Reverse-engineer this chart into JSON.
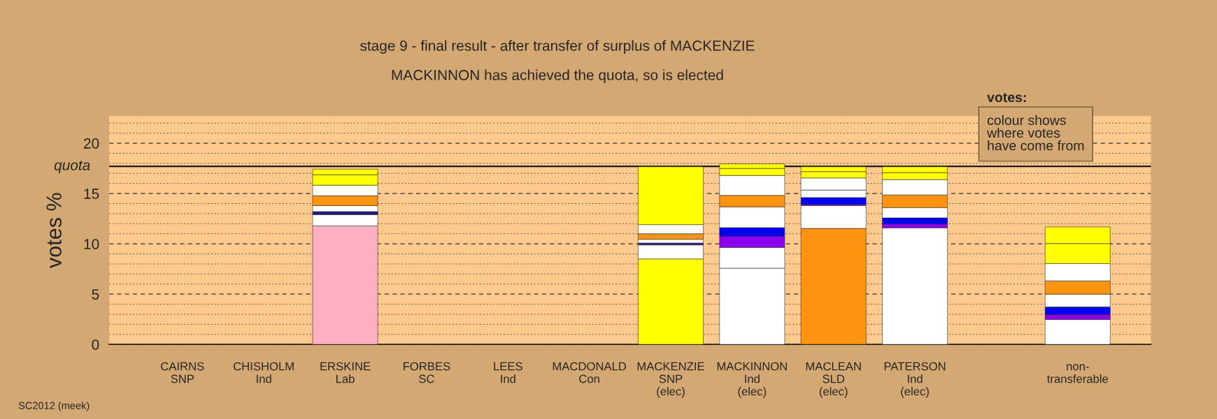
{
  "chart_data": {
    "type": "bar",
    "stacked": true,
    "title": "stage 9 - final result - after transfer of surplus of MACKENZIE",
    "subtitle": "MACKINNON has achieved the quota, so is elected",
    "ylabel": "votes %",
    "categories": [
      "CAIRNS\nSNP",
      "CHISHOLM\nInd",
      "ERSKINE\nLab",
      "FORBES\nSC",
      "LEES\nInd",
      "MACDONALD\nCon",
      "MACKENZIE\nSNP\n(elec)",
      "MACKINNON\nInd\n(elec)",
      "MACLEAN\nSLD\n(elec)",
      "PATERSON\nInd\n(elec)",
      null,
      "non-\ntransferable"
    ],
    "series": [
      {
        "values": [
          null,
          null,
          11.78,
          null,
          null,
          null,
          8.5,
          7.58,
          11.54,
          11.59,
          null,
          2.48
        ],
        "colors": [
          null,
          null,
          "#ffb0c0",
          null,
          null,
          null,
          "#ffff00",
          "#ffffff",
          "#ff9410",
          "#ffffff",
          null,
          "#ffffff"
        ]
      },
      {
        "values": [
          null,
          null,
          1.12,
          null,
          null,
          null,
          1.39,
          2.06,
          2.27,
          0.39,
          null,
          0.5
        ],
        "colors": [
          null,
          null,
          "#ffffff",
          null,
          null,
          null,
          "#ffffff",
          "#ffffff",
          "#ffffff",
          "#8b00ee",
          null,
          "#8b00ee"
        ]
      },
      {
        "values": [
          null,
          null,
          0.3,
          null,
          null,
          null,
          0.19,
          1.14,
          0.12,
          0.6,
          null,
          0.75
        ],
        "colors": [
          null,
          null,
          "#1a1a8c",
          null,
          null,
          null,
          "#3b1f8c",
          "#8b00ee",
          "#8b00ee",
          "#0000ff",
          null,
          "#0000ff"
        ]
      },
      {
        "values": [
          null,
          null,
          0.6,
          null,
          null,
          null,
          0.37,
          0.83,
          0.67,
          1.03,
          null,
          1.27
        ],
        "colors": [
          null,
          null,
          "#ffffff",
          null,
          null,
          null,
          "#ffffff",
          "#0000ff",
          "#0000ff",
          "#ffffff",
          null,
          "#ffffff"
        ]
      },
      {
        "values": [
          null,
          null,
          0.98,
          null,
          null,
          null,
          0.55,
          2.07,
          0.75,
          1.25,
          null,
          1.32
        ],
        "colors": [
          null,
          null,
          "#ff9410",
          null,
          null,
          null,
          "#ff9410",
          "#ffffff",
          "#ffffff",
          "#ff9410",
          null,
          "#ff9410"
        ]
      },
      {
        "values": [
          null,
          null,
          1.05,
          null,
          null,
          null,
          0.91,
          1.13,
          1.2,
          1.53,
          null,
          1.72
        ],
        "colors": [
          null,
          null,
          "#ffffff",
          null,
          null,
          null,
          "#ffffff",
          "#ff9410",
          "#ffffff",
          "#ffffff",
          null,
          "#ffffff"
        ]
      },
      {
        "values": [
          null,
          null,
          1.04,
          null,
          null,
          null,
          5.75,
          1.98,
          0.63,
          0.69,
          null,
          1.99
        ],
        "colors": [
          null,
          null,
          "#ffff00",
          null,
          null,
          null,
          "#ffff00",
          "#ffffff",
          "#ffff00",
          "#ffff00",
          null,
          "#ffff00"
        ]
      },
      {
        "values": [
          null,
          null,
          0.55,
          null,
          null,
          null,
          null,
          0.71,
          0.48,
          0.58,
          null,
          1.65
        ],
        "colors": [
          null,
          null,
          "#ffff00",
          null,
          null,
          null,
          null,
          "#ffff00",
          "#ffff00",
          "#ffff00",
          null,
          "#ffff00"
        ]
      },
      {
        "values": [
          null,
          null,
          null,
          null,
          null,
          null,
          null,
          0.44,
          null,
          null,
          null,
          null
        ],
        "colors": [
          null,
          null,
          null,
          null,
          null,
          null,
          null,
          "#ffff00",
          null,
          null,
          null,
          null
        ]
      }
    ],
    "ylim": [
      0,
      22.7
    ],
    "yticks": [
      0,
      {
        "value": 1,
        "label": null
      },
      {
        "value": 2,
        "label": null
      },
      {
        "value": 3,
        "label": null
      },
      {
        "value": 4,
        "label": null
      },
      5,
      {
        "value": 6,
        "label": null
      },
      {
        "value": 7,
        "label": null
      },
      {
        "value": 8,
        "label": null
      },
      {
        "value": 9,
        "label": null
      },
      10,
      {
        "value": 11,
        "label": null
      },
      {
        "value": 12,
        "label": null
      },
      {
        "value": 13,
        "label": null
      },
      {
        "value": 14,
        "label": null
      },
      15,
      {
        "value": 16,
        "label": null
      },
      {
        "value": 17,
        "label": null
      },
      {
        "value": 18,
        "label": null
      },
      {
        "value": 19,
        "label": null
      },
      20,
      {
        "value": 21,
        "label": null
      },
      {
        "value": 22,
        "label": null
      }
    ],
    "grid": "y",
    "ref_lines": [
      {
        "axis": "y",
        "value": 17.7,
        "label": "quota",
        "color": "#000000"
      }
    ],
    "annotations": [
      "votes:",
      "colour shows\nwhere votes\nhave come from",
      "SC2012 (meek)"
    ]
  }
}
